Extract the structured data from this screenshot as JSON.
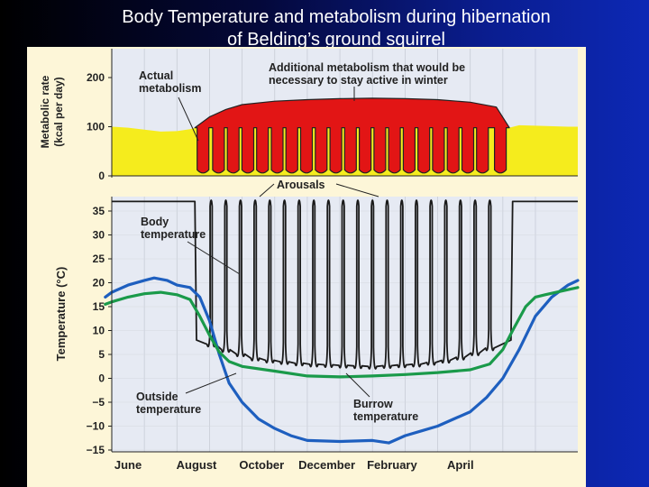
{
  "slide": {
    "title_line1": "Body Temperature and metabolism during hibernation",
    "title_line2": "of Belding’s ground squirrel"
  },
  "colors": {
    "background_left": "#000000",
    "background_right": "#0d28b5",
    "panel": "#fdf6d8",
    "plot_area": "#e6eaf3",
    "actual_metabolism_fill": "#f5ec1d",
    "additional_metabolism_fill": "#e21515",
    "body_temperature_line": "#1a1a1a",
    "outside_temperature_line": "#1e5fbf",
    "burrow_temperature_line": "#1a9a4a"
  },
  "chart_data": [
    {
      "type": "area",
      "panel": "metabolic-rate",
      "ylabel": "Metabolic rate (kcal per day)",
      "yticks": [
        0,
        100,
        200
      ],
      "ylim": [
        0,
        230
      ],
      "grid": true,
      "annotations": [
        {
          "text_lines": [
            "Actual",
            "metabolism"
          ],
          "points_to": "actual metabolism"
        },
        {
          "text_lines": [
            "Additional metabolism that would be",
            "necessary to stay active in winter"
          ],
          "points_to": "additional metabolism"
        }
      ],
      "series": [
        {
          "name": "Actual metabolism",
          "points": [
            [
              0,
              100
            ],
            [
              0.5,
              98
            ],
            [
              1,
              94
            ],
            [
              1.5,
              90
            ],
            [
              2,
              91
            ],
            [
              2.4,
              95
            ],
            [
              2.55,
              98
            ],
            [
              12.2,
              98
            ],
            [
              12.5,
              103
            ],
            [
              13,
              102
            ],
            [
              14,
              100
            ],
            [
              14.3,
              100
            ]
          ]
        },
        {
          "name": "Additional metabolism",
          "top": [
            [
              2.55,
              98
            ],
            [
              3,
              120
            ],
            [
              3.5,
              135
            ],
            [
              4,
              145
            ],
            [
              5,
              152
            ],
            [
              6,
              155
            ],
            [
              7,
              157
            ],
            [
              8,
              158
            ],
            [
              9,
              157
            ],
            [
              10,
              155
            ],
            [
              11,
              150
            ],
            [
              11.8,
              140
            ],
            [
              12.2,
              98
            ]
          ],
          "dips_to": 5
        }
      ]
    },
    {
      "type": "line",
      "panel": "temperature",
      "ylabel": "Temperature (°C)",
      "yticks": [
        35,
        30,
        25,
        20,
        15,
        10,
        5,
        0,
        -5,
        -10,
        -15
      ],
      "ylim": [
        -15,
        35
      ],
      "categories": [
        "June",
        "August",
        "October",
        "December",
        "February",
        "April"
      ],
      "category_positions": [
        0.5,
        2.6,
        4.6,
        6.6,
        8.6,
        10.7
      ],
      "xlim": [
        0,
        14.3
      ],
      "grid": true,
      "annotations": [
        {
          "text_lines": [
            "Arousals"
          ],
          "points_to": "arousal spikes"
        },
        {
          "text_lines": [
            "Body",
            "temperature"
          ],
          "points_to": "body temperature"
        },
        {
          "text_lines": [
            "Outside",
            "temperature"
          ],
          "points_to": "outside temperature"
        },
        {
          "text_lines": [
            "Burrow",
            "temperature"
          ],
          "points_to": "burrow temperature"
        }
      ],
      "series": [
        {
          "name": "Body temperature",
          "active_value": 37,
          "torpor_value": 3,
          "hibernation_start": 2.55,
          "hibernation_end": 12.3,
          "torpor_floor": [
            [
              2.7,
              8
            ],
            [
              3.5,
              6
            ],
            [
              4.5,
              4
            ],
            [
              6,
              3
            ],
            [
              8,
              2.5
            ],
            [
              9.5,
              3
            ],
            [
              10.5,
              4
            ],
            [
              11.5,
              6
            ],
            [
              12.1,
              8
            ]
          ],
          "arousal_times": [
            3.05,
            3.5,
            3.95,
            4.4,
            4.85,
            5.3,
            5.75,
            6.2,
            6.65,
            7.1,
            7.55,
            8.0,
            8.45,
            8.9,
            9.35,
            9.8,
            10.25,
            10.7,
            11.15,
            11.6
          ]
        },
        {
          "name": "Outside temperature",
          "points": [
            [
              -0.2,
              17
            ],
            [
              0,
              18
            ],
            [
              0.5,
              19.5
            ],
            [
              1,
              20.5
            ],
            [
              1.3,
              21
            ],
            [
              1.7,
              20.5
            ],
            [
              2,
              19.5
            ],
            [
              2.4,
              19
            ],
            [
              2.7,
              17
            ],
            [
              3,
              12
            ],
            [
              3.3,
              5
            ],
            [
              3.6,
              -1
            ],
            [
              4,
              -5
            ],
            [
              4.5,
              -8.5
            ],
            [
              5,
              -10.5
            ],
            [
              5.5,
              -12
            ],
            [
              6,
              -13
            ],
            [
              7,
              -13.2
            ],
            [
              8,
              -13
            ],
            [
              8.5,
              -13.5
            ],
            [
              9,
              -12
            ],
            [
              9.5,
              -11
            ],
            [
              10,
              -10
            ],
            [
              10.5,
              -8.5
            ],
            [
              11,
              -7
            ],
            [
              11.5,
              -4
            ],
            [
              12,
              0
            ],
            [
              12.5,
              6
            ],
            [
              13,
              13
            ],
            [
              13.5,
              17
            ],
            [
              14,
              19.5
            ],
            [
              14.3,
              20.5
            ]
          ]
        },
        {
          "name": "Burrow temperature",
          "points": [
            [
              -0.2,
              15.5
            ],
            [
              0,
              16
            ],
            [
              0.5,
              17
            ],
            [
              1,
              17.7
            ],
            [
              1.5,
              18
            ],
            [
              2,
              17.5
            ],
            [
              2.4,
              16.5
            ],
            [
              2.7,
              13
            ],
            [
              3,
              9
            ],
            [
              3.3,
              5.5
            ],
            [
              3.6,
              3.5
            ],
            [
              4,
              2.5
            ],
            [
              5,
              1.5
            ],
            [
              6,
              0.5
            ],
            [
              7,
              0.3
            ],
            [
              8,
              0.5
            ],
            [
              9,
              0.8
            ],
            [
              10,
              1.2
            ],
            [
              11,
              1.8
            ],
            [
              11.6,
              3
            ],
            [
              12,
              6
            ],
            [
              12.3,
              10
            ],
            [
              12.7,
              15
            ],
            [
              13,
              17
            ],
            [
              13.3,
              17.5
            ],
            [
              14.3,
              19
            ]
          ]
        }
      ]
    }
  ]
}
